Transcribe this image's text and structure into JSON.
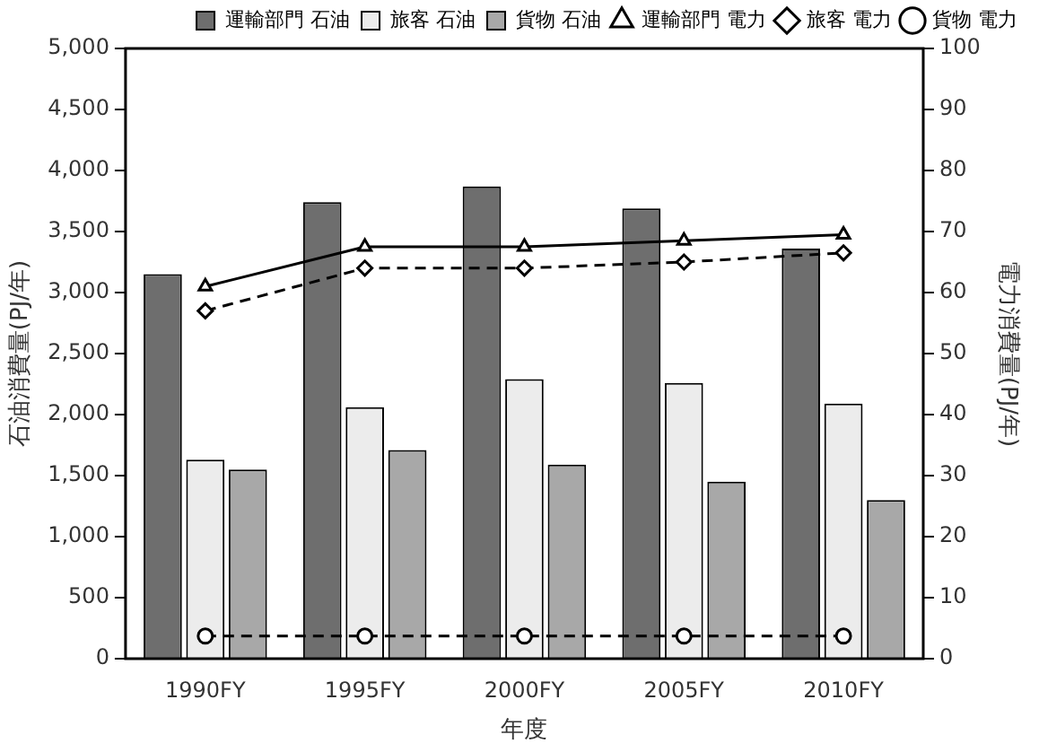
{
  "chart_data": {
    "type": "bar",
    "xlabel": "年度",
    "ylabel": "石油消費量(PJ/年)",
    "y2label": "電力消費量(PJ/年)",
    "categories": [
      "1990FY",
      "1995FY",
      "2000FY",
      "2005FY",
      "2010FY"
    ],
    "series": [
      {
        "name": "運輸部門 石油",
        "color": "#6e6e6e",
        "values": [
          3150,
          3740,
          3870,
          3690,
          3360
        ]
      },
      {
        "name": "旅客 石油",
        "color": "#ececec",
        "values": [
          1630,
          2060,
          2290,
          2260,
          2090
        ]
      },
      {
        "name": "貨物 石油",
        "color": "#a8a8a8",
        "values": [
          1550,
          1710,
          1590,
          1450,
          1300
        ]
      },
      {
        "type": "line",
        "axis": "y2",
        "name": "運輸部門 電力",
        "color": "#000000",
        "marker": "triangle",
        "line_style": "solid",
        "values": [
          61,
          67.5,
          67.5,
          68.5,
          69.5
        ]
      },
      {
        "type": "line",
        "axis": "y2",
        "name": "旅客 電力",
        "color": "#000000",
        "marker": "diamond",
        "line_style": "dashed",
        "values": [
          57,
          64,
          64,
          65,
          66.5
        ]
      },
      {
        "type": "line",
        "axis": "y2",
        "name": "貨物 電力",
        "color": "#000000",
        "marker": "circle",
        "line_style": "dashed",
        "values": [
          3.7,
          3.7,
          3.7,
          3.7,
          3.7
        ]
      }
    ],
    "ylim": [
      0,
      5000
    ],
    "yticks": [
      0,
      500,
      {
        "value": 1000,
        "label": "1,000"
      },
      {
        "value": 1500,
        "label": "1,500"
      },
      {
        "value": 2000,
        "label": "2,000"
      },
      {
        "value": 2500,
        "label": "2,500"
      },
      {
        "value": 3000,
        "label": "3,000"
      },
      {
        "value": 3500,
        "label": "3,500"
      },
      {
        "value": 4000,
        "label": "4,000"
      },
      {
        "value": 4500,
        "label": "4,500"
      },
      {
        "value": 5000,
        "label": "5,000"
      }
    ],
    "y2lim": [
      0,
      100
    ],
    "y2ticks": [
      0,
      10,
      20,
      30,
      40,
      50,
      60,
      70,
      80,
      90,
      100
    ],
    "grid": false,
    "legend": "top right"
  }
}
